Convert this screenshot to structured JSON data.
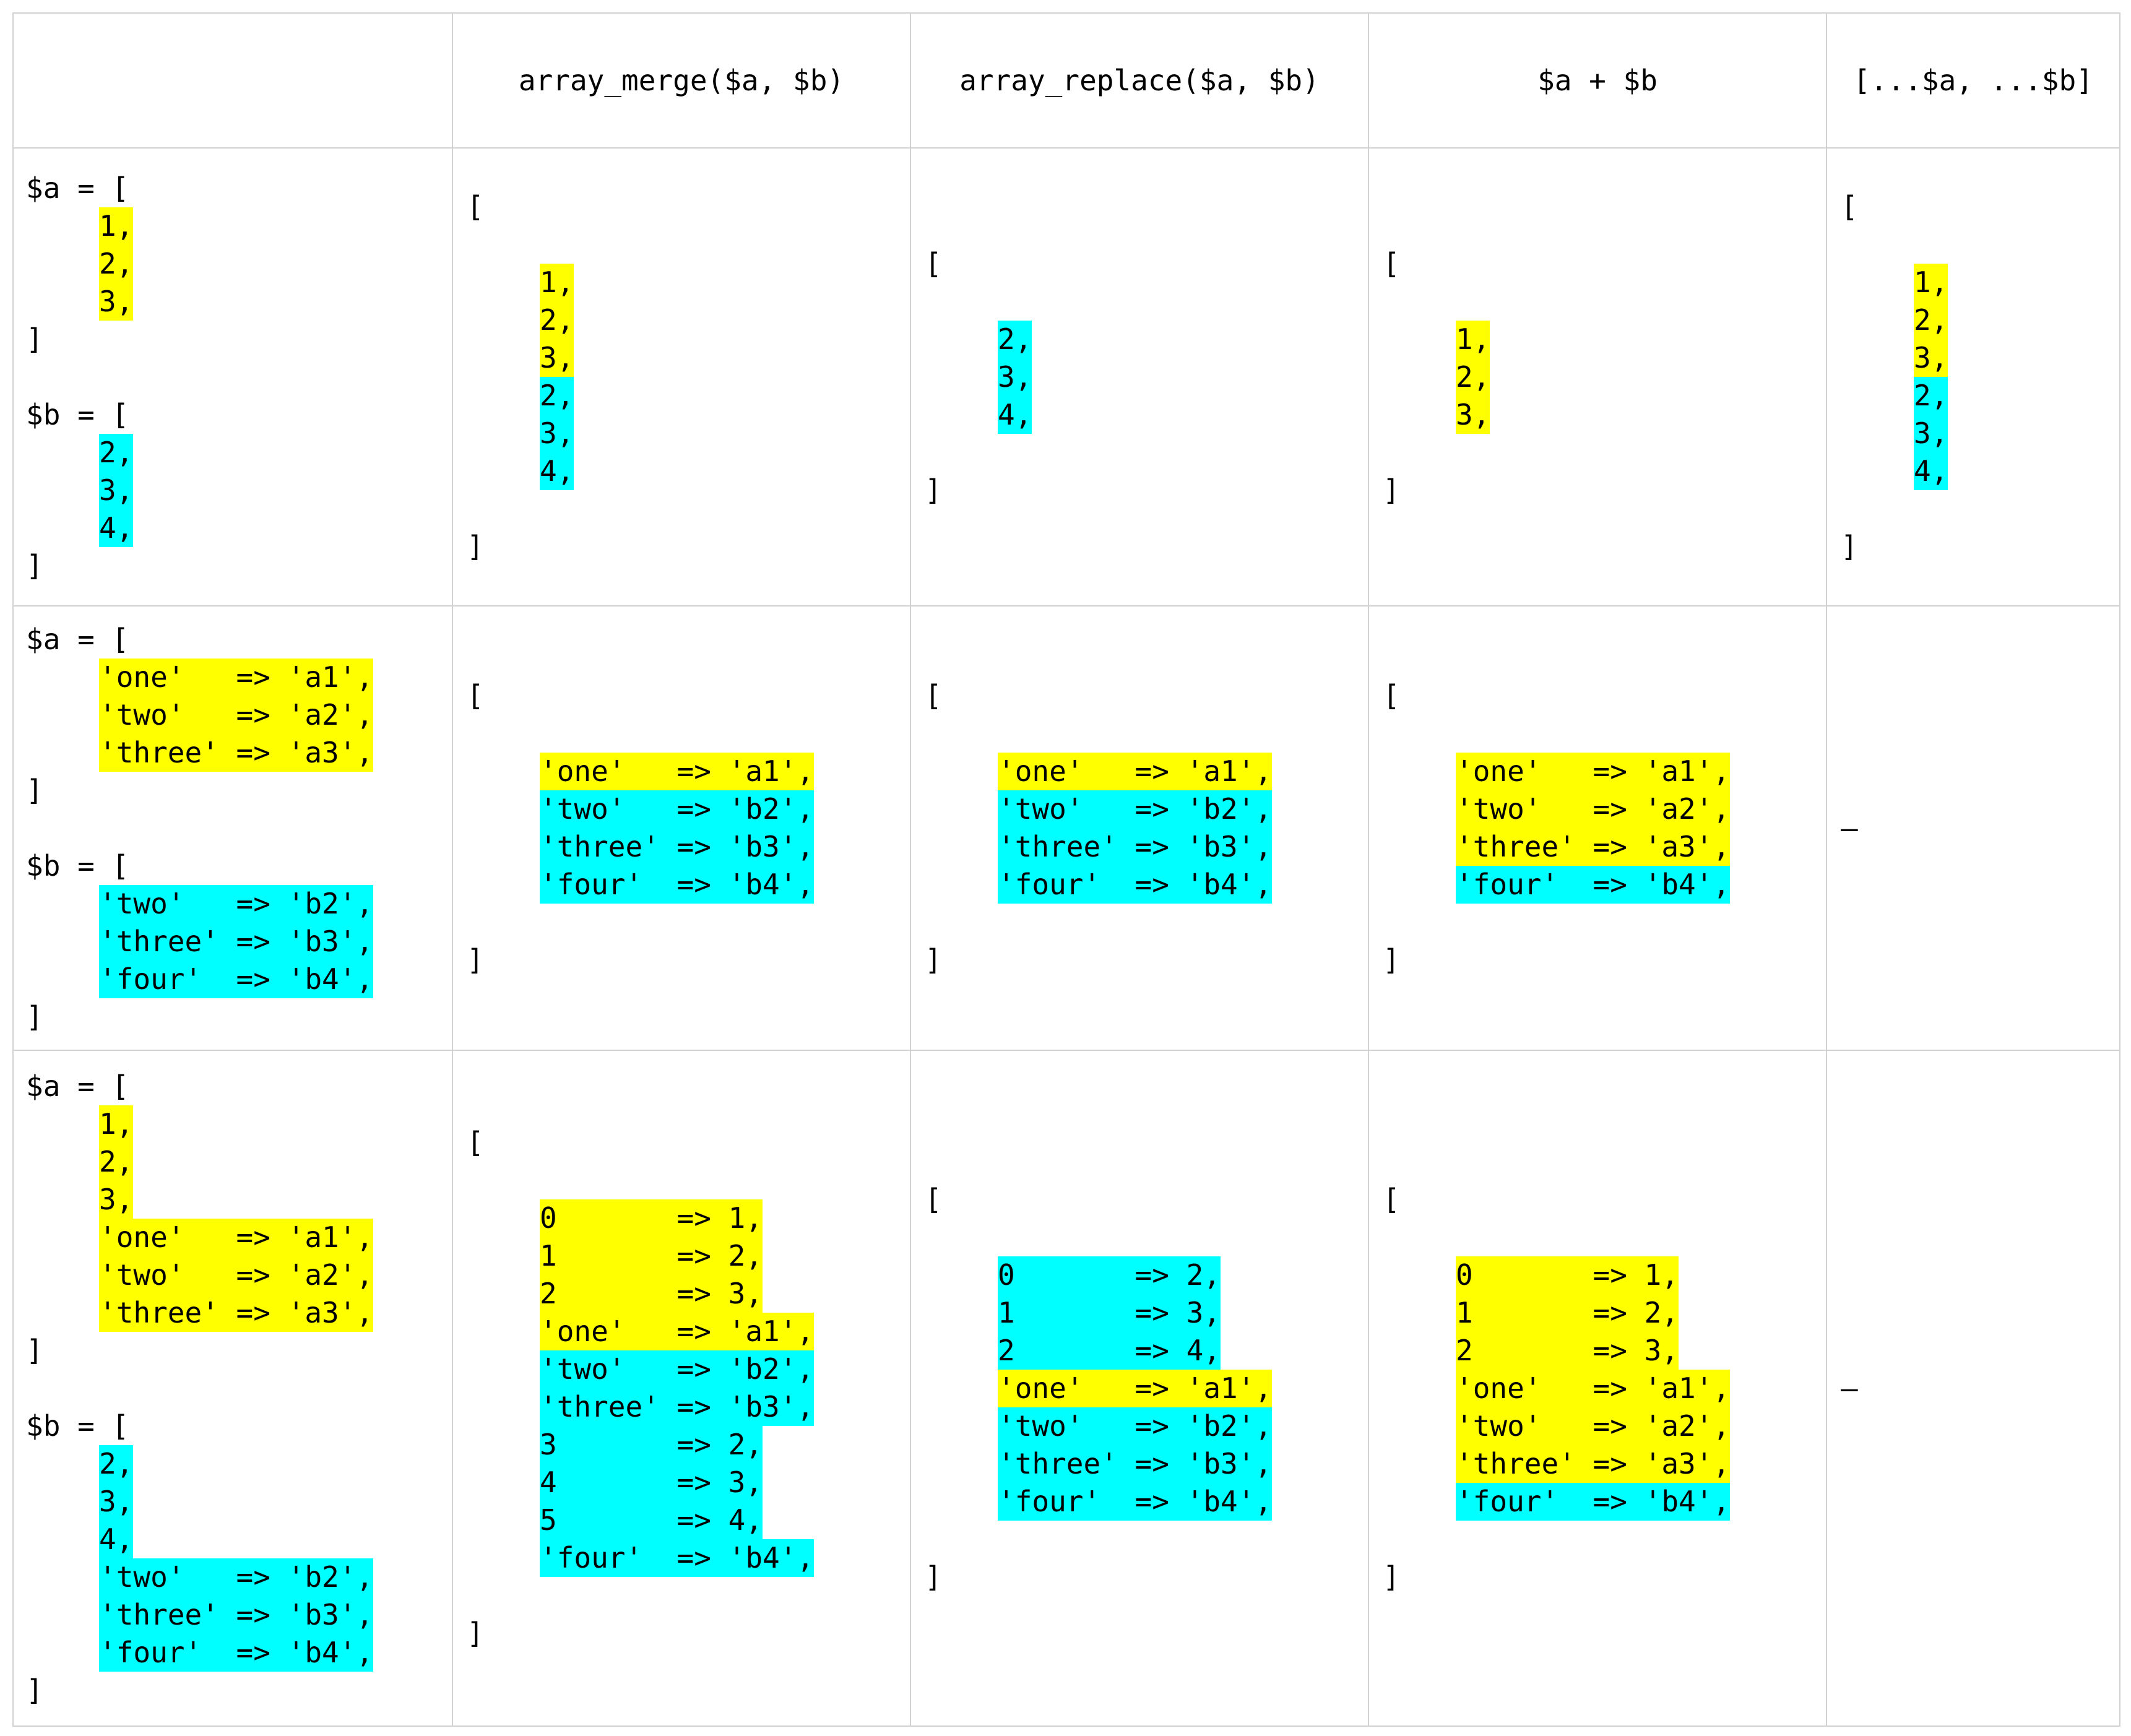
{
  "colors": {
    "a": "#ffff00",
    "b": "#00ffff",
    "grid": "#d2d2d2"
  },
  "headers": [
    "",
    "array_merge($a, $b)",
    "array_replace($a, $b)",
    "$a + $b",
    "[...$a, ...$b]"
  ],
  "rows": [
    {
      "input": {
        "a_open": "$a = [",
        "a_items": [
          {
            "t": "1,",
            "c": "a"
          },
          {
            "t": "2,",
            "c": "a"
          },
          {
            "t": "3,",
            "c": "a"
          }
        ],
        "a_close": "]",
        "b_open": "$b = [",
        "b_items": [
          {
            "t": "2,",
            "c": "b"
          },
          {
            "t": "3,",
            "c": "b"
          },
          {
            "t": "4,",
            "c": "b"
          }
        ],
        "b_close": "]"
      },
      "results": [
        {
          "open": "[",
          "close": "]",
          "items": [
            {
              "t": "1,",
              "c": "a"
            },
            {
              "t": "2,",
              "c": "a"
            },
            {
              "t": "3,",
              "c": "a"
            },
            {
              "t": "2,",
              "c": "b"
            },
            {
              "t": "3,",
              "c": "b"
            },
            {
              "t": "4,",
              "c": "b"
            }
          ]
        },
        {
          "open": "[",
          "close": "]",
          "items": [
            {
              "t": "2,",
              "c": "b"
            },
            {
              "t": "3,",
              "c": "b"
            },
            {
              "t": "4,",
              "c": "b"
            }
          ]
        },
        {
          "open": "[",
          "close": "]",
          "items": [
            {
              "t": "1,",
              "c": "a"
            },
            {
              "t": "2,",
              "c": "a"
            },
            {
              "t": "3,",
              "c": "a"
            }
          ]
        },
        {
          "open": "[",
          "close": "]",
          "items": [
            {
              "t": "1,",
              "c": "a"
            },
            {
              "t": "2,",
              "c": "a"
            },
            {
              "t": "3,",
              "c": "a"
            },
            {
              "t": "2,",
              "c": "b"
            },
            {
              "t": "3,",
              "c": "b"
            },
            {
              "t": "4,",
              "c": "b"
            }
          ]
        }
      ]
    },
    {
      "input": {
        "a_open": "$a = [",
        "a_items": [
          {
            "t": "'one'   => 'a1',",
            "c": "a"
          },
          {
            "t": "'two'   => 'a2',",
            "c": "a"
          },
          {
            "t": "'three' => 'a3',",
            "c": "a"
          }
        ],
        "a_close": "]",
        "b_open": "$b = [",
        "b_items": [
          {
            "t": "'two'   => 'b2',",
            "c": "b"
          },
          {
            "t": "'three' => 'b3',",
            "c": "b"
          },
          {
            "t": "'four'  => 'b4',",
            "c": "b"
          }
        ],
        "b_close": "]"
      },
      "results": [
        {
          "open": "[",
          "close": "]",
          "items": [
            {
              "t": "'one'   => 'a1',",
              "c": "a"
            },
            {
              "t": "'two'   => 'b2',",
              "c": "b"
            },
            {
              "t": "'three' => 'b3',",
              "c": "b"
            },
            {
              "t": "'four'  => 'b4',",
              "c": "b"
            }
          ]
        },
        {
          "open": "[",
          "close": "]",
          "items": [
            {
              "t": "'one'   => 'a1',",
              "c": "a"
            },
            {
              "t": "'two'   => 'b2',",
              "c": "b"
            },
            {
              "t": "'three' => 'b3',",
              "c": "b"
            },
            {
              "t": "'four'  => 'b4',",
              "c": "b"
            }
          ]
        },
        {
          "open": "[",
          "close": "]",
          "items": [
            {
              "t": "'one'   => 'a1',",
              "c": "a"
            },
            {
              "t": "'two'   => 'a2',",
              "c": "a"
            },
            {
              "t": "'three' => 'a3',",
              "c": "a"
            },
            {
              "t": "'four'  => 'b4',",
              "c": "b"
            }
          ]
        },
        {
          "dash": "–"
        }
      ]
    },
    {
      "input": {
        "a_open": "$a = [",
        "a_items": [
          {
            "t": "1,",
            "c": "a"
          },
          {
            "t": "2,",
            "c": "a"
          },
          {
            "t": "3,",
            "c": "a"
          },
          {
            "t": "'one'   => 'a1',",
            "c": "a"
          },
          {
            "t": "'two'   => 'a2',",
            "c": "a"
          },
          {
            "t": "'three' => 'a3',",
            "c": "a"
          }
        ],
        "a_close": "]",
        "b_open": "$b = [",
        "b_items": [
          {
            "t": "2,",
            "c": "b"
          },
          {
            "t": "3,",
            "c": "b"
          },
          {
            "t": "4,",
            "c": "b"
          },
          {
            "t": "'two'   => 'b2',",
            "c": "b"
          },
          {
            "t": "'three' => 'b3',",
            "c": "b"
          },
          {
            "t": "'four'  => 'b4',",
            "c": "b"
          }
        ],
        "b_close": "]"
      },
      "results": [
        {
          "open": "[",
          "close": "]",
          "items": [
            {
              "t": "0       => 1,",
              "c": "a"
            },
            {
              "t": "1       => 2,",
              "c": "a"
            },
            {
              "t": "2       => 3,",
              "c": "a"
            },
            {
              "t": "'one'   => 'a1',",
              "c": "a"
            },
            {
              "t": "'two'   => 'b2',",
              "c": "b"
            },
            {
              "t": "'three' => 'b3',",
              "c": "b"
            },
            {
              "t": "3       => 2,",
              "c": "b"
            },
            {
              "t": "4       => 3,",
              "c": "b"
            },
            {
              "t": "5       => 4,",
              "c": "b"
            },
            {
              "t": "'four'  => 'b4',",
              "c": "b"
            }
          ]
        },
        {
          "open": "[",
          "close": "]",
          "items": [
            {
              "t": "0       => 2,",
              "c": "b"
            },
            {
              "t": "1       => 3,",
              "c": "b"
            },
            {
              "t": "2       => 4,",
              "c": "b"
            },
            {
              "t": "'one'   => 'a1',",
              "c": "a"
            },
            {
              "t": "'two'   => 'b2',",
              "c": "b"
            },
            {
              "t": "'three' => 'b3',",
              "c": "b"
            },
            {
              "t": "'four'  => 'b4',",
              "c": "b"
            }
          ]
        },
        {
          "open": "[",
          "close": "]",
          "items": [
            {
              "t": "0       => 1,",
              "c": "a"
            },
            {
              "t": "1       => 2,",
              "c": "a"
            },
            {
              "t": "2       => 3,",
              "c": "a"
            },
            {
              "t": "'one'   => 'a1',",
              "c": "a"
            },
            {
              "t": "'two'   => 'a2',",
              "c": "a"
            },
            {
              "t": "'three' => 'a3',",
              "c": "a"
            },
            {
              "t": "'four'  => 'b4',",
              "c": "b"
            }
          ]
        },
        {
          "dash": "–"
        }
      ]
    }
  ]
}
